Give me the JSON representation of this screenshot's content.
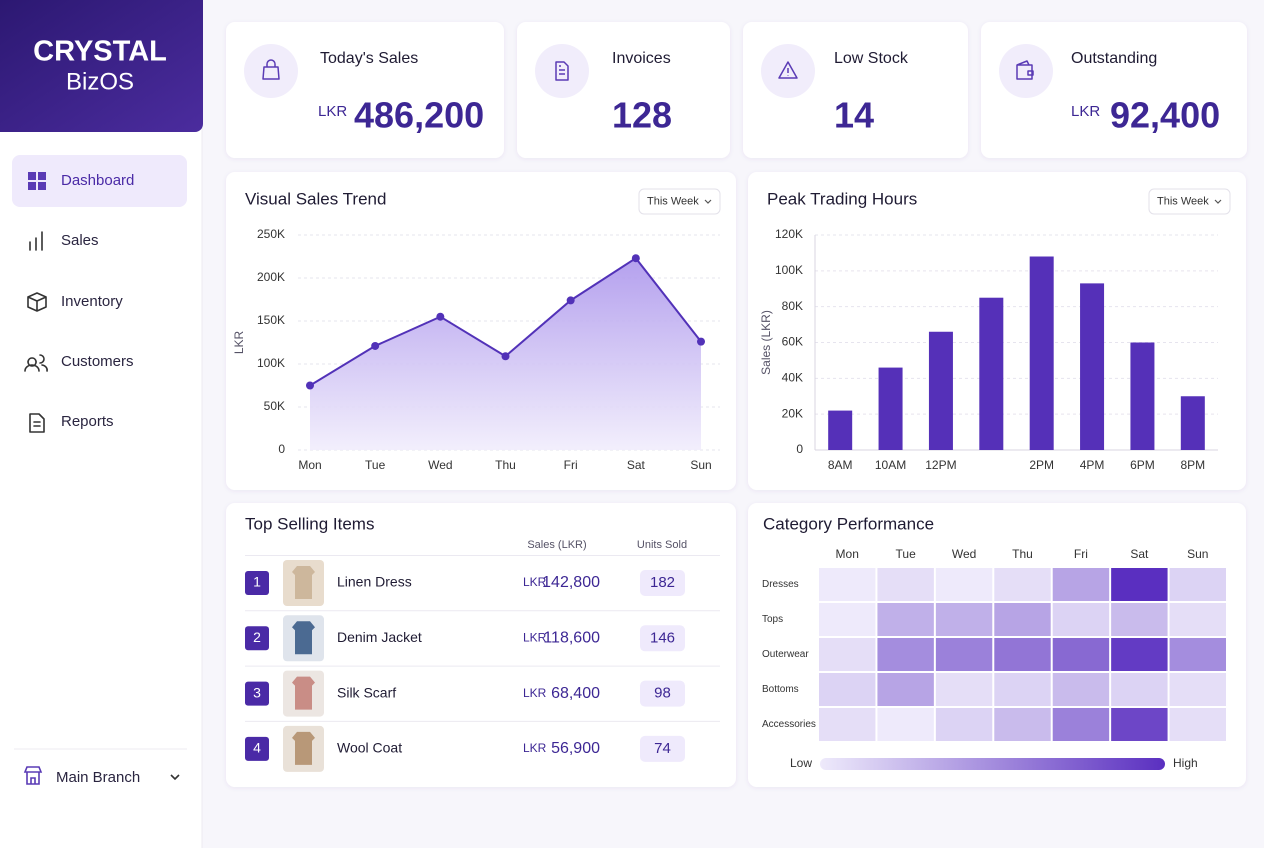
{
  "brand": {
    "name": "CRYSTAL",
    "subtitle": "BizOS"
  },
  "nav": {
    "items": [
      "Dashboard",
      "Sales",
      "Inventory",
      "Customers",
      "Reports"
    ],
    "active": 0
  },
  "branch": "Main Branch",
  "kpis": [
    {
      "label": "Today's Sales",
      "currency": "LKR",
      "value": "486,200"
    },
    {
      "label": "Invoices",
      "value": "128"
    },
    {
      "label": "Low Stock",
      "value": "14"
    },
    {
      "label": "Outstanding",
      "currency": "LKR",
      "value": "92,400"
    }
  ],
  "chart_data": [
    {
      "type": "line",
      "title": "Visual Sales Trend",
      "period": "This Week",
      "ylabel": "LKR",
      "categories": [
        "Mon",
        "Tue",
        "Wed",
        "Thu",
        "Fri",
        "Sat",
        "Sun"
      ],
      "values": [
        75000,
        121000,
        155000,
        109000,
        174000,
        223000,
        126000
      ],
      "color": "#5232b8",
      "ylim": [
        0,
        250000
      ],
      "yticks": [
        0,
        {
          "value": 50000,
          "label": "50K"
        },
        {
          "value": 100000,
          "label": "100K"
        },
        {
          "value": 150000,
          "label": "150K"
        },
        {
          "value": 200000,
          "label": "200K"
        },
        {
          "value": 250000,
          "label": "250K"
        }
      ],
      "grid": true
    },
    {
      "type": "bar",
      "title": "Peak Trading Hours",
      "period": "This Week",
      "ylabel": "Sales (LKR)",
      "categories": [
        "8AM",
        "10AM",
        "12PM",
        null,
        "2PM",
        "4PM",
        "6PM",
        "8PM"
      ],
      "values": [
        22000,
        46000,
        66000,
        85000,
        108000,
        93000,
        60000,
        30000
      ],
      "color": "#5530b8",
      "ylim": [
        0,
        120000
      ],
      "yticks": [
        0,
        {
          "value": 20000,
          "label": "20K"
        },
        {
          "value": 40000,
          "label": "40K"
        },
        {
          "value": 60000,
          "label": "60K"
        },
        {
          "value": 80000,
          "label": "80K"
        },
        {
          "value": 100000,
          "label": "100K"
        },
        {
          "value": 120000,
          "label": "120K"
        }
      ],
      "grid": true
    },
    {
      "type": "heatmap",
      "title": "Category Performance",
      "x": [
        "Mon",
        "Tue",
        "Wed",
        "Thu",
        "Fri",
        "Sat",
        "Sun"
      ],
      "y": [
        "Dresses",
        "Tops",
        "Outerwear",
        "Bottoms",
        "Accessories"
      ],
      "values": [
        [
          15,
          20,
          15,
          20,
          45,
          95,
          25
        ],
        [
          15,
          40,
          40,
          45,
          25,
          35,
          20
        ],
        [
          20,
          55,
          60,
          65,
          70,
          90,
          55
        ],
        [
          25,
          45,
          20,
          25,
          35,
          25,
          20
        ],
        [
          20,
          15,
          25,
          35,
          60,
          85,
          20
        ]
      ],
      "colors": [
        "#eeeafb",
        "#5a2fc0"
      ],
      "legend": {
        "low": "Low",
        "high": "High"
      }
    }
  ],
  "top_items": {
    "title": "Top Selling Items",
    "columns": [
      "Sales (LKR)",
      "Units Sold"
    ],
    "rows": [
      {
        "rank": 1,
        "name": "Linen Dress",
        "currency": "LKR",
        "sales": "142,800",
        "units": 182
      },
      {
        "rank": 2,
        "name": "Denim Jacket",
        "currency": "LKR",
        "sales": "118,600",
        "units": 146
      },
      {
        "rank": 3,
        "name": "Silk Scarf",
        "currency": "LKR",
        "sales": "68,400",
        "units": 98
      },
      {
        "rank": 4,
        "name": "Wool Coat",
        "currency": "LKR",
        "sales": "56,900",
        "units": 74
      }
    ]
  }
}
